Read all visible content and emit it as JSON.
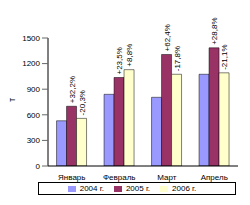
{
  "chart_data": {
    "type": "bar",
    "y_label": "т",
    "categories": [
      "Январь",
      "Февраль",
      "Март",
      "Апрель"
    ],
    "series": [
      {
        "name": "2004 г.",
        "color": "#9999ff",
        "values": [
          530,
          840,
          805,
          1075
        ]
      },
      {
        "name": "2005 г.",
        "color": "#993366",
        "values": [
          700,
          1037,
          1307,
          1385
        ],
        "annotations": [
          "+32,2%",
          "+23,5%",
          "+62,4%",
          "+28,8%"
        ]
      },
      {
        "name": "2006 г.",
        "color": "#ffffcc",
        "values": [
          558,
          1129,
          1075,
          1092
        ],
        "annotations": [
          "-20,3%",
          "+8,8%",
          "-17,8%",
          "-21,1%"
        ]
      }
    ],
    "ylim": [
      0,
      1500
    ],
    "yticks": [
      0,
      300,
      600,
      900,
      1200,
      1500
    ],
    "grid": false,
    "legend": "bottom"
  }
}
